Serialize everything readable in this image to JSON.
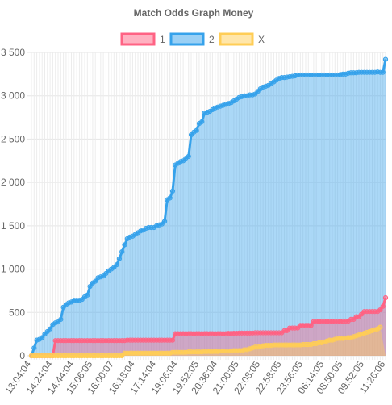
{
  "chart_data": {
    "type": "area",
    "title": "Match Odds Graph Money",
    "xlabel": "",
    "ylabel": "",
    "ylim": [
      0,
      3500
    ],
    "y_ticks": [
      0,
      500,
      1000,
      1500,
      2000,
      2500,
      3000,
      3500
    ],
    "y_tick_labels": [
      "0",
      "500",
      "1 000",
      "1 500",
      "2 000",
      "2 500",
      "3 000",
      "3 500"
    ],
    "grid": true,
    "legend_position": "top",
    "x_tick_labels": [
      "13:04:04",
      "14:24:04",
      "14:44:04",
      "15:06:05",
      "16:00:07",
      "16:18:04",
      "17:14:04",
      "19:06:04",
      "19:52:05",
      "20:36:04",
      "21:00:05",
      "22:08:05",
      "22:58:05",
      "23:56:05",
      "06:14:05",
      "08:50:05",
      "09:52:05",
      "11:26:06"
    ],
    "series": [
      {
        "name": "1",
        "color": "#ff6384",
        "values": [
          0,
          0,
          0,
          0,
          0,
          0,
          0,
          0,
          0,
          175,
          175,
          175,
          175,
          175,
          175,
          175,
          175,
          175,
          175,
          175,
          175,
          175,
          175,
          175,
          175,
          175,
          175,
          175,
          175,
          175,
          175,
          175,
          175,
          175,
          175,
          175,
          180,
          180,
          180,
          180,
          180,
          180,
          180,
          180,
          180,
          180,
          180,
          180,
          180,
          180,
          180,
          180,
          180,
          180,
          255,
          255,
          255,
          255,
          255,
          255,
          255,
          255,
          255,
          255,
          255,
          255,
          255,
          255,
          255,
          255,
          255,
          255,
          255,
          255,
          258,
          258,
          260,
          260,
          262,
          262,
          262,
          262,
          262,
          262,
          265,
          265,
          265,
          265,
          265,
          265,
          265,
          265,
          265,
          265,
          265,
          290,
          290,
          320,
          320,
          320,
          320,
          350,
          350,
          350,
          350,
          350,
          395,
          395,
          395,
          395,
          395,
          395,
          395,
          395,
          395,
          395,
          395,
          400,
          400,
          400,
          420,
          420,
          450,
          450,
          480,
          510,
          510,
          510,
          510,
          510,
          510,
          530,
          570,
          670
        ]
      },
      {
        "name": "2",
        "color": "#36a2eb",
        "values": [
          0,
          90,
          180,
          190,
          210,
          250,
          280,
          310,
          360,
          380,
          390,
          420,
          560,
          590,
          610,
          620,
          640,
          640,
          640,
          650,
          680,
          700,
          800,
          840,
          860,
          900,
          910,
          920,
          950,
          980,
          1000,
          1020,
          1050,
          1120,
          1200,
          1280,
          1350,
          1370,
          1380,
          1400,
          1420,
          1440,
          1450,
          1470,
          1480,
          1480,
          1480,
          1500,
          1510,
          1520,
          1550,
          1800,
          1820,
          1900,
          2200,
          2220,
          2240,
          2250,
          2280,
          2300,
          2550,
          2580,
          2600,
          2680,
          2700,
          2800,
          2810,
          2820,
          2840,
          2860,
          2870,
          2880,
          2890,
          2900,
          2910,
          2920,
          2940,
          2960,
          2980,
          2990,
          3000,
          3000,
          3010,
          3010,
          3020,
          3050,
          3080,
          3100,
          3110,
          3120,
          3140,
          3160,
          3180,
          3200,
          3210,
          3210,
          3215,
          3220,
          3225,
          3230,
          3240,
          3240,
          3240,
          3240,
          3240,
          3240,
          3240,
          3240,
          3240,
          3240,
          3240,
          3240,
          3240,
          3240,
          3240,
          3240,
          3245,
          3250,
          3250,
          3260,
          3265,
          3265,
          3265,
          3270,
          3270,
          3270,
          3270,
          3270,
          3270,
          3270,
          3275,
          3270,
          3270,
          3420
        ]
      },
      {
        "name": "X",
        "color": "#ffcd56",
        "values": [
          0,
          0,
          0,
          0,
          0,
          0,
          0,
          0,
          0,
          0,
          0,
          0,
          0,
          0,
          0,
          0,
          0,
          0,
          0,
          0,
          0,
          0,
          0,
          0,
          0,
          0,
          0,
          0,
          0,
          0,
          0,
          0,
          0,
          0,
          0,
          30,
          30,
          30,
          30,
          30,
          30,
          30,
          30,
          30,
          30,
          30,
          30,
          30,
          30,
          30,
          30,
          30,
          30,
          40,
          40,
          40,
          40,
          40,
          40,
          45,
          45,
          45,
          45,
          45,
          45,
          50,
          50,
          50,
          50,
          50,
          50,
          55,
          55,
          55,
          55,
          55,
          60,
          60,
          60,
          60,
          70,
          70,
          80,
          90,
          100,
          100,
          110,
          115,
          120,
          120,
          120,
          125,
          125,
          125,
          125,
          125,
          125,
          125,
          125,
          125,
          125,
          125,
          130,
          130,
          130,
          130,
          140,
          140,
          150,
          150,
          160,
          170,
          180,
          180,
          190,
          200,
          200,
          200,
          205,
          210,
          210,
          220,
          230,
          240,
          250,
          260,
          270,
          280,
          290,
          300,
          310,
          330
        ]
      }
    ]
  }
}
